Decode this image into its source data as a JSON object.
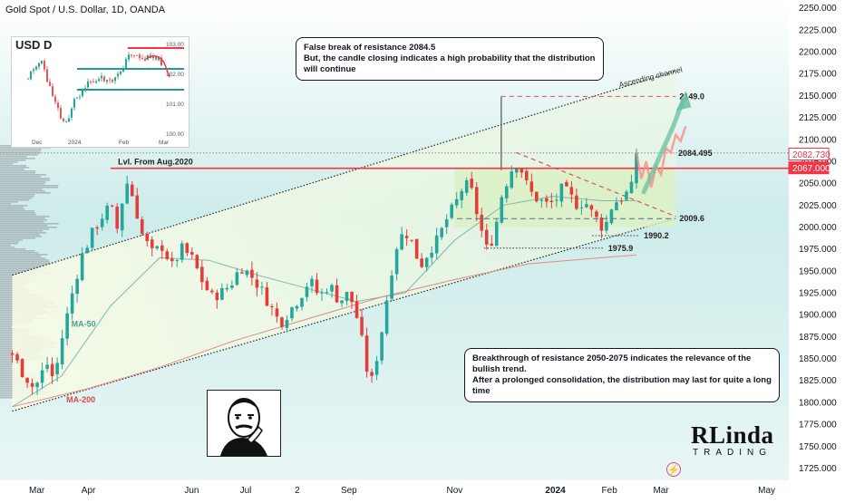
{
  "header": {
    "title": "Gold Spot / U.S. Dollar, 1D, OANDA"
  },
  "colors": {
    "up": "#26a69a",
    "down": "#ef5350",
    "candle_down": "#e63b3b",
    "resistance": "#f23645",
    "zone": "#d9f0c2",
    "projection": "#6bbf9e",
    "ma50": "#7fb8ad",
    "ma200": "#e08a8a"
  },
  "chart_data": {
    "type": "candlestick",
    "title": "Gold Spot / U.S. Dollar, 1D, OANDA",
    "xlabel": "",
    "ylabel": "",
    "ylim": [
      1710,
      2260
    ],
    "y_ticks": [
      1725,
      1750,
      1775,
      1800,
      1825,
      1850,
      1875,
      1900,
      1925,
      1950,
      1975,
      2000,
      2025,
      2050,
      2075,
      2100,
      2125,
      2150,
      2175,
      2200,
      2225,
      2250
    ],
    "y_tick_labels": [
      "1725.000",
      "1750.000",
      "1775.000",
      "1800.000",
      "1825.000",
      "1850.000",
      "1875.000",
      "1900.000",
      "1925.000",
      "1950.000",
      "1975.000",
      "2000.000",
      "2025.000",
      "2050.000",
      "2075.000",
      "2100.000",
      "2125.000",
      "2150.000",
      "2175.000",
      "2200.000",
      "2225.000",
      "2250.000"
    ],
    "x_labels": [
      {
        "label": "Mar",
        "t": 10
      },
      {
        "label": "Apr",
        "t": 31
      },
      {
        "label": "Jun",
        "t": 73
      },
      {
        "label": "Jul",
        "t": 95
      },
      {
        "label": "2",
        "t": 116
      },
      {
        "label": "Sep",
        "t": 137
      },
      {
        "label": "Nov",
        "t": 180
      },
      {
        "label": "2024",
        "t": 221
      },
      {
        "label": "Feb",
        "t": 243
      },
      {
        "label": "Mar",
        "t": 264
      },
      {
        "label": "May",
        "t": 307
      }
    ],
    "price_path": [
      [
        0,
        1855
      ],
      [
        4,
        1835
      ],
      [
        9,
        1815
      ],
      [
        14,
        1845
      ],
      [
        17,
        1825
      ],
      [
        20,
        1870
      ],
      [
        24,
        1920
      ],
      [
        28,
        1965
      ],
      [
        32,
        1990
      ],
      [
        36,
        2010
      ],
      [
        40,
        2025
      ],
      [
        43,
        1995
      ],
      [
        46,
        2055
      ],
      [
        49,
        2035
      ],
      [
        53,
        1990
      ],
      [
        57,
        1970
      ],
      [
        61,
        1978
      ],
      [
        65,
        1955
      ],
      [
        69,
        1975
      ],
      [
        73,
        1965
      ],
      [
        77,
        1940
      ],
      [
        81,
        1920
      ],
      [
        85,
        1925
      ],
      [
        89,
        1935
      ],
      [
        93,
        1955
      ],
      [
        97,
        1945
      ],
      [
        101,
        1930
      ],
      [
        105,
        1910
      ],
      [
        109,
        1890
      ],
      [
        113,
        1905
      ],
      [
        117,
        1920
      ],
      [
        121,
        1940
      ],
      [
        125,
        1920
      ],
      [
        129,
        1935
      ],
      [
        133,
        1915
      ],
      [
        137,
        1925
      ],
      [
        140,
        1900
      ],
      [
        143,
        1860
      ],
      [
        145,
        1825
      ],
      [
        147,
        1825
      ],
      [
        149,
        1865
      ],
      [
        151,
        1890
      ],
      [
        153,
        1930
      ],
      [
        155,
        1960
      ],
      [
        157,
        1985
      ],
      [
        160,
        1995
      ],
      [
        163,
        1980
      ],
      [
        166,
        1955
      ],
      [
        170,
        1975
      ],
      [
        173,
        1985
      ],
      [
        177,
        2010
      ],
      [
        181,
        2030
      ],
      [
        184,
        2050
      ],
      [
        187,
        2040
      ],
      [
        190,
        2005
      ],
      [
        193,
        1975
      ],
      [
        196,
        1990
      ],
      [
        199,
        2035
      ],
      [
        203,
        2065
      ],
      [
        206,
        2075
      ],
      [
        209,
        2050
      ],
      [
        212,
        2035
      ],
      [
        215,
        2030
      ],
      [
        218,
        2025
      ],
      [
        221,
        2030
      ],
      [
        224,
        2045
      ],
      [
        227,
        2035
      ],
      [
        230,
        2025
      ],
      [
        233,
        2030
      ],
      [
        236,
        2015
      ],
      [
        239,
        2005
      ],
      [
        241,
        1995
      ],
      [
        243,
        2020
      ],
      [
        246,
        2030
      ],
      [
        249,
        2035
      ],
      [
        252,
        2045
      ],
      [
        254,
        2085
      ]
    ],
    "candle_count": 126,
    "seed": 7,
    "ma": [
      {
        "name": "MA-50",
        "path": [
          [
            0,
            1795
          ],
          [
            20,
            1830
          ],
          [
            40,
            1910
          ],
          [
            60,
            1965
          ],
          [
            80,
            1962
          ],
          [
            100,
            1945
          ],
          [
            120,
            1930
          ],
          [
            140,
            1915
          ],
          [
            160,
            1925
          ],
          [
            180,
            1985
          ],
          [
            200,
            2025
          ],
          [
            220,
            2035
          ],
          [
            240,
            2030
          ],
          [
            254,
            2030
          ]
        ]
      },
      {
        "name": "MA-200",
        "path": [
          [
            0,
            1795
          ],
          [
            30,
            1815
          ],
          [
            60,
            1840
          ],
          [
            90,
            1870
          ],
          [
            120,
            1895
          ],
          [
            150,
            1920
          ],
          [
            180,
            1940
          ],
          [
            210,
            1958
          ],
          [
            240,
            1965
          ],
          [
            254,
            1968
          ]
        ]
      }
    ],
    "projection_path": [
      [
        254,
        2085
      ],
      [
        256,
        2055
      ],
      [
        258,
        2075
      ],
      [
        260,
        2045
      ],
      [
        262,
        2070
      ],
      [
        264,
        2060
      ],
      [
        266,
        2090
      ],
      [
        268,
        2085
      ],
      [
        270,
        2105
      ],
      [
        272,
        2098
      ],
      [
        274,
        2115
      ]
    ],
    "projection_trend": [
      [
        257,
        2040
      ],
      [
        261,
        2065
      ],
      [
        265,
        2090
      ],
      [
        269,
        2115
      ],
      [
        273,
        2145
      ]
    ],
    "levels": [
      {
        "value": 2149.0,
        "label": "2149.0",
        "style": "dashed-red"
      },
      {
        "value": 2084.495,
        "label": "2084.495",
        "style": "dotted"
      },
      {
        "value": 2067.0,
        "label": "Lvl. From Aug.2020",
        "style": "solid-red"
      },
      {
        "value": 2009.6,
        "label": "2009.6",
        "style": "dashed-blue"
      },
      {
        "value": 1990.2,
        "label": "1990.2",
        "style": "dotted"
      },
      {
        "value": 1975.9,
        "label": "1975.9",
        "style": "dotted"
      }
    ],
    "price_tags": [
      {
        "value": 2082.73,
        "label": "2082.730",
        "style": "outline"
      },
      {
        "value": 2067.0,
        "label": "2067.000",
        "style": "filled"
      }
    ],
    "channel": {
      "label": "Ascending channel",
      "upper": [
        [
          0,
          1945
        ],
        [
          270,
          2178
        ]
      ],
      "lower": [
        [
          0,
          1790
        ],
        [
          270,
          2010
        ]
      ]
    },
    "descending_line": [
      [
        205,
        2085
      ],
      [
        270,
        2012
      ]
    ],
    "consolidation_zone": {
      "t0": 180,
      "t1": 270,
      "y0": 2000,
      "y1": 2067
    },
    "breakout_marker": {
      "t": 199,
      "y0": 2065,
      "y1": 2149
    },
    "ma_labels": [
      {
        "text": "MA-50",
        "t": 24,
        "y": 1886
      },
      {
        "text": "MA-200",
        "t": 22,
        "y": 1800
      }
    ],
    "annotations": [
      {
        "text": "False break of resistance 2084.5",
        "line2": "But, the candle closing indicates a high probability that the distribution will continue"
      },
      {
        "text": "Breakthrough of resistance 2050-2075 indicates the relevance of the bullish trend.",
        "line2": "After a prolonged consolidation, the distribution may last for quite a long time"
      }
    ]
  },
  "inset": {
    "label": "USD D",
    "ticks": [
      "103.00",
      "102.00",
      "101.00",
      "100.00"
    ],
    "x_labels": [
      "Dec",
      "2024",
      "Feb",
      "Mar"
    ]
  },
  "branding": {
    "logo_text": "RLinda",
    "logo_sub": "TRADING"
  },
  "icons": {
    "meme": "thinking-man-icon",
    "flash": "lightning-icon"
  }
}
